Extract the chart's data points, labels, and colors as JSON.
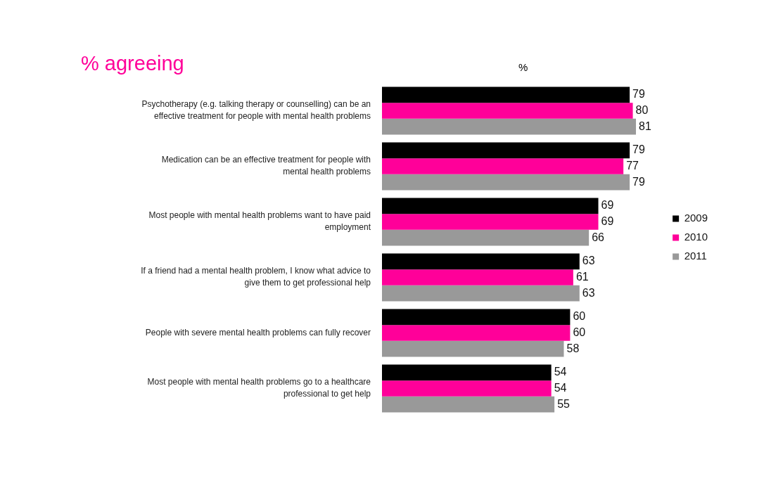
{
  "chart_data": {
    "type": "bar",
    "orientation": "horizontal",
    "title": "% agreeing",
    "xlabel": "%",
    "categories": [
      "Psychotherapy (e.g. talking therapy or counselling) can be an effective treatment for people with mental health problems",
      "Medication can be an effective treatment for people with mental health problems",
      "Most people with mental health problems want to have paid employment",
      "If a friend had a mental health problem, I know what advice to give them to get professional help",
      "People with severe mental health problems can fully recover",
      "Most people with mental health problems go to a healthcare professional to get help"
    ],
    "series": [
      {
        "name": "2009",
        "color": "#000000",
        "values": [
          79,
          79,
          69,
          63,
          60,
          54
        ]
      },
      {
        "name": "2010",
        "color": "#ff0099",
        "values": [
          80,
          77,
          69,
          61,
          60,
          54
        ]
      },
      {
        "name": "2011",
        "color": "#999999",
        "values": [
          81,
          79,
          66,
          63,
          58,
          55
        ]
      }
    ],
    "data_labels": true,
    "legend": "right",
    "grid": false,
    "tick_labels": "y"
  }
}
